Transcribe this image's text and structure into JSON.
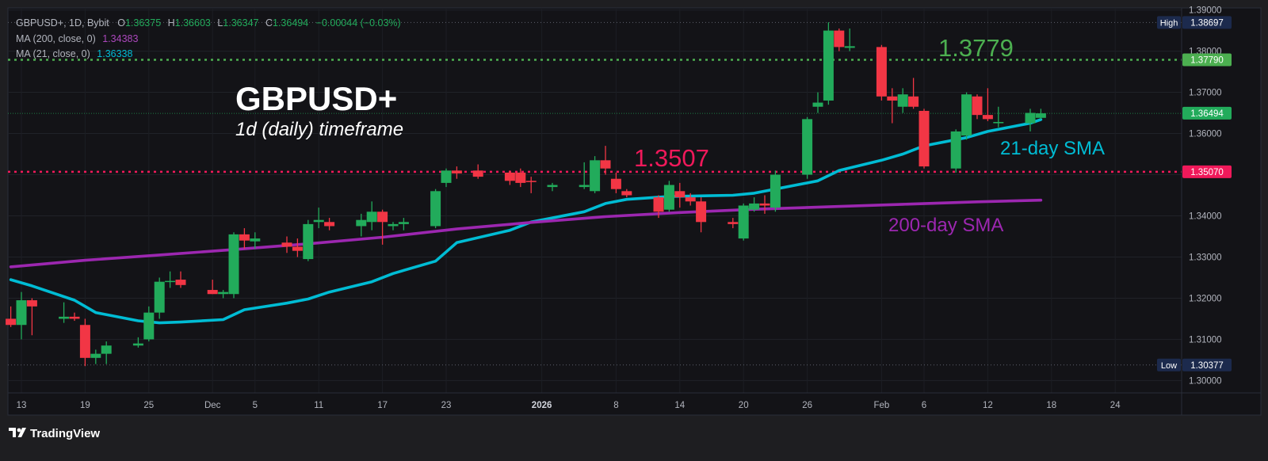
{
  "legend": {
    "symbol_line": {
      "prefix": "GBPUSD+, 1D, Bybit",
      "o_label": "O",
      "o_value": "1.36375",
      "h_label": "H",
      "h_value": "1.36603",
      "l_label": "L",
      "l_value": "1.36347",
      "c_label": "C",
      "c_value": "1.36494",
      "change": "−0.00044 (−0.03%)"
    },
    "ma200": {
      "label": "MA (200, close, 0)",
      "value": "1.34383"
    },
    "ma21": {
      "label": "MA (21, close, 0)",
      "value": "1.36338"
    }
  },
  "annotations": {
    "title": "GBPUSD+",
    "subtitle": "1d (daily) timeframe",
    "resistance_label": "1.3779",
    "support_label": "1.3507",
    "ma21_label": "21-day SMA",
    "ma200_label": "200-day SMA"
  },
  "price_tags": {
    "high": {
      "label": "High",
      "value": "1.38697"
    },
    "low": {
      "label": "Low",
      "value": "1.30377"
    },
    "last": "1.36494",
    "resistance": "1.37790",
    "support": "1.35070"
  },
  "footer": {
    "brand": "TradingView"
  },
  "colors": {
    "background": "#131317",
    "up": "#22ab5b",
    "down": "#f23645",
    "ma21": "#00bcd4",
    "ma200": "#9c27b0",
    "resistance": "#4caf50",
    "support": "#f0195a",
    "text": "#b2b5be"
  },
  "chart_data": {
    "type": "candlestick",
    "symbol": "GBPUSD+",
    "timeframe": "1D",
    "y_axis": {
      "ticks": [
        "1.39000",
        "1.38000",
        "1.37000",
        "1.36000",
        "1.35000",
        "1.34000",
        "1.33000",
        "1.32000",
        "1.31000",
        "1.30000"
      ],
      "ylim": [
        1.297,
        1.3905
      ]
    },
    "x_axis": {
      "ticks": [
        {
          "label": "13",
          "date": "2025-11-13"
        },
        {
          "label": "19",
          "date": "2025-11-19"
        },
        {
          "label": "25",
          "date": "2025-11-25"
        },
        {
          "label": "Dec",
          "date": "2025-12-01"
        },
        {
          "label": "5",
          "date": "2025-12-05"
        },
        {
          "label": "11",
          "date": "2025-12-11"
        },
        {
          "label": "17",
          "date": "2025-12-17"
        },
        {
          "label": "23",
          "date": "2025-12-23"
        },
        {
          "label": "2026",
          "date": "2026-01-01"
        },
        {
          "label": "8",
          "date": "2026-01-08"
        },
        {
          "label": "14",
          "date": "2026-01-14"
        },
        {
          "label": "20",
          "date": "2026-01-20"
        },
        {
          "label": "26",
          "date": "2026-01-26"
        },
        {
          "label": "Feb",
          "date": "2026-02-02"
        },
        {
          "label": "6",
          "date": "2026-02-06"
        },
        {
          "label": "12",
          "date": "2026-02-12"
        },
        {
          "label": "18",
          "date": "2026-02-18"
        },
        {
          "label": "24",
          "date": "2026-02-24"
        }
      ]
    },
    "candles": [
      {
        "date": "2025-11-12",
        "open": 1.315,
        "high": 1.318,
        "low": 1.313,
        "close": 1.3135
      },
      {
        "date": "2025-11-13",
        "open": 1.3135,
        "high": 1.3215,
        "low": 1.31,
        "close": 1.3195
      },
      {
        "date": "2025-11-14",
        "open": 1.3195,
        "high": 1.32,
        "low": 1.311,
        "close": 1.318
      },
      {
        "date": "2025-11-17",
        "open": 1.315,
        "high": 1.319,
        "low": 1.314,
        "close": 1.3155
      },
      {
        "date": "2025-11-18",
        "open": 1.3155,
        "high": 1.3165,
        "low": 1.3145,
        "close": 1.315
      },
      {
        "date": "2025-11-19",
        "open": 1.3135,
        "high": 1.315,
        "low": 1.3035,
        "close": 1.3055
      },
      {
        "date": "2025-11-20",
        "open": 1.3055,
        "high": 1.3075,
        "low": 1.304,
        "close": 1.3065
      },
      {
        "date": "2025-11-21",
        "open": 1.3065,
        "high": 1.3095,
        "low": 1.304,
        "close": 1.3085
      },
      {
        "date": "2025-11-24",
        "open": 1.3085,
        "high": 1.3105,
        "low": 1.308,
        "close": 1.309
      },
      {
        "date": "2025-11-25",
        "open": 1.31,
        "high": 1.318,
        "low": 1.3095,
        "close": 1.3165
      },
      {
        "date": "2025-11-26",
        "open": 1.3165,
        "high": 1.325,
        "low": 1.315,
        "close": 1.324
      },
      {
        "date": "2025-11-27",
        "open": 1.324,
        "high": 1.3265,
        "low": 1.3225,
        "close": 1.3242
      },
      {
        "date": "2025-11-28",
        "open": 1.3245,
        "high": 1.3265,
        "low": 1.3225,
        "close": 1.3232
      },
      {
        "date": "2025-12-01",
        "open": 1.322,
        "high": 1.3245,
        "low": 1.321,
        "close": 1.321
      },
      {
        "date": "2025-12-02",
        "open": 1.321,
        "high": 1.322,
        "low": 1.32,
        "close": 1.3215
      },
      {
        "date": "2025-12-03",
        "open": 1.321,
        "high": 1.336,
        "low": 1.32,
        "close": 1.3355
      },
      {
        "date": "2025-12-04",
        "open": 1.3355,
        "high": 1.337,
        "low": 1.332,
        "close": 1.334
      },
      {
        "date": "2025-12-05",
        "open": 1.3338,
        "high": 1.336,
        "low": 1.332,
        "close": 1.3345
      },
      {
        "date": "2025-12-08",
        "open": 1.3335,
        "high": 1.335,
        "low": 1.331,
        "close": 1.3325
      },
      {
        "date": "2025-12-09",
        "open": 1.3325,
        "high": 1.3345,
        "low": 1.33,
        "close": 1.3315
      },
      {
        "date": "2025-12-10",
        "open": 1.3295,
        "high": 1.339,
        "low": 1.329,
        "close": 1.338
      },
      {
        "date": "2025-12-11",
        "open": 1.3385,
        "high": 1.342,
        "low": 1.337,
        "close": 1.339
      },
      {
        "date": "2025-12-12",
        "open": 1.3385,
        "high": 1.3395,
        "low": 1.3365,
        "close": 1.3375
      },
      {
        "date": "2025-12-15",
        "open": 1.3375,
        "high": 1.3405,
        "low": 1.335,
        "close": 1.339
      },
      {
        "date": "2025-12-16",
        "open": 1.3385,
        "high": 1.3435,
        "low": 1.3365,
        "close": 1.341
      },
      {
        "date": "2025-12-17",
        "open": 1.341,
        "high": 1.3415,
        "low": 1.333,
        "close": 1.3385
      },
      {
        "date": "2025-12-18",
        "open": 1.3375,
        "high": 1.3385,
        "low": 1.3365,
        "close": 1.338
      },
      {
        "date": "2025-12-19",
        "open": 1.338,
        "high": 1.3395,
        "low": 1.3365,
        "close": 1.3385
      },
      {
        "date": "2025-12-22",
        "open": 1.3375,
        "high": 1.3465,
        "low": 1.337,
        "close": 1.346
      },
      {
        "date": "2025-12-23",
        "open": 1.348,
        "high": 1.3515,
        "low": 1.347,
        "close": 1.351
      },
      {
        "date": "2025-12-24",
        "open": 1.351,
        "high": 1.352,
        "low": 1.349,
        "close": 1.3503
      },
      {
        "date": "2025-12-26",
        "open": 1.351,
        "high": 1.3525,
        "low": 1.349,
        "close": 1.3495
      },
      {
        "date": "2025-12-29",
        "open": 1.3505,
        "high": 1.351,
        "low": 1.3475,
        "close": 1.3485
      },
      {
        "date": "2025-12-30",
        "open": 1.3505,
        "high": 1.3515,
        "low": 1.347,
        "close": 1.348
      },
      {
        "date": "2025-12-31",
        "open": 1.3485,
        "high": 1.3495,
        "low": 1.3455,
        "close": 1.3482
      },
      {
        "date": "2026-01-02",
        "open": 1.347,
        "high": 1.348,
        "low": 1.346,
        "close": 1.3475
      },
      {
        "date": "2026-01-05",
        "open": 1.347,
        "high": 1.353,
        "low": 1.3465,
        "close": 1.3475
      },
      {
        "date": "2026-01-06",
        "open": 1.346,
        "high": 1.3545,
        "low": 1.3455,
        "close": 1.3535
      },
      {
        "date": "2026-01-07",
        "open": 1.3535,
        "high": 1.357,
        "low": 1.35,
        "close": 1.3515
      },
      {
        "date": "2026-01-08",
        "open": 1.349,
        "high": 1.3505,
        "low": 1.3455,
        "close": 1.3465
      },
      {
        "date": "2026-01-09",
        "open": 1.346,
        "high": 1.3465,
        "low": 1.3445,
        "close": 1.345
      },
      {
        "date": "2026-01-12",
        "open": 1.3445,
        "high": 1.345,
        "low": 1.3395,
        "close": 1.341
      },
      {
        "date": "2026-01-13",
        "open": 1.3415,
        "high": 1.3485,
        "low": 1.341,
        "close": 1.3475
      },
      {
        "date": "2026-01-14",
        "open": 1.346,
        "high": 1.348,
        "low": 1.342,
        "close": 1.3445
      },
      {
        "date": "2026-01-15",
        "open": 1.3445,
        "high": 1.3455,
        "low": 1.3425,
        "close": 1.3435
      },
      {
        "date": "2026-01-16",
        "open": 1.3435,
        "high": 1.3445,
        "low": 1.336,
        "close": 1.3385
      },
      {
        "date": "2026-01-19",
        "open": 1.3385,
        "high": 1.3395,
        "low": 1.337,
        "close": 1.338
      },
      {
        "date": "2026-01-20",
        "open": 1.3345,
        "high": 1.343,
        "low": 1.334,
        "close": 1.3425
      },
      {
        "date": "2026-01-21",
        "open": 1.3415,
        "high": 1.3445,
        "low": 1.341,
        "close": 1.343
      },
      {
        "date": "2026-01-22",
        "open": 1.343,
        "high": 1.345,
        "low": 1.3405,
        "close": 1.3425
      },
      {
        "date": "2026-01-23",
        "open": 1.342,
        "high": 1.351,
        "low": 1.341,
        "close": 1.35
      },
      {
        "date": "2026-01-26",
        "open": 1.35,
        "high": 1.364,
        "low": 1.349,
        "close": 1.3635
      },
      {
        "date": "2026-01-27",
        "open": 1.3665,
        "high": 1.37,
        "low": 1.365,
        "close": 1.3675
      },
      {
        "date": "2026-01-28",
        "open": 1.368,
        "high": 1.387,
        "low": 1.367,
        "close": 1.385
      },
      {
        "date": "2026-01-29",
        "open": 1.385,
        "high": 1.3855,
        "low": 1.38,
        "close": 1.381
      },
      {
        "date": "2026-01-30",
        "open": 1.3808,
        "high": 1.3855,
        "low": 1.38,
        "close": 1.3812
      },
      {
        "date": "2026-02-02",
        "open": 1.381,
        "high": 1.3815,
        "low": 1.368,
        "close": 1.369
      },
      {
        "date": "2026-02-03",
        "open": 1.369,
        "high": 1.371,
        "low": 1.3625,
        "close": 1.368
      },
      {
        "date": "2026-02-04",
        "open": 1.3665,
        "high": 1.371,
        "low": 1.365,
        "close": 1.3695
      },
      {
        "date": "2026-02-05",
        "open": 1.369,
        "high": 1.3735,
        "low": 1.366,
        "close": 1.3665
      },
      {
        "date": "2026-02-06",
        "open": 1.3655,
        "high": 1.366,
        "low": 1.3515,
        "close": 1.352
      },
      {
        "date": "2026-02-09",
        "open": 1.3515,
        "high": 1.361,
        "low": 1.3505,
        "close": 1.3605
      },
      {
        "date": "2026-02-10",
        "open": 1.3595,
        "high": 1.37,
        "low": 1.3585,
        "close": 1.3695
      },
      {
        "date": "2026-02-11",
        "open": 1.369,
        "high": 1.3695,
        "low": 1.3635,
        "close": 1.3645
      },
      {
        "date": "2026-02-12",
        "open": 1.3645,
        "high": 1.371,
        "low": 1.363,
        "close": 1.3635
      },
      {
        "date": "2026-02-13",
        "open": 1.3625,
        "high": 1.3665,
        "low": 1.3615,
        "close": 1.3628
      },
      {
        "date": "2026-02-16",
        "open": 1.3625,
        "high": 1.366,
        "low": 1.3605,
        "close": 1.365
      },
      {
        "date": "2026-02-17",
        "open": 1.3638,
        "high": 1.366,
        "low": 1.3635,
        "close": 1.3649
      }
    ],
    "series": [
      {
        "name": "MA (21, close, 0)",
        "points": [
          [
            "2025-11-12",
            1.3245
          ],
          [
            "2025-11-14",
            1.323
          ],
          [
            "2025-11-18",
            1.3195
          ],
          [
            "2025-11-20",
            1.3165
          ],
          [
            "2025-11-24",
            1.3145
          ],
          [
            "2025-11-26",
            1.314
          ],
          [
            "2025-11-28",
            1.3142
          ],
          [
            "2025-12-02",
            1.3148
          ],
          [
            "2025-12-04",
            1.3172
          ],
          [
            "2025-12-08",
            1.3188
          ],
          [
            "2025-12-10",
            1.3198
          ],
          [
            "2025-12-12",
            1.3215
          ],
          [
            "2025-12-16",
            1.324
          ],
          [
            "2025-12-18",
            1.326
          ],
          [
            "2025-12-22",
            1.329
          ],
          [
            "2025-12-24",
            1.3335
          ],
          [
            "2025-12-29",
            1.3365
          ],
          [
            "2025-12-31",
            1.3385
          ],
          [
            "2026-01-05",
            1.341
          ],
          [
            "2026-01-07",
            1.343
          ],
          [
            "2026-01-09",
            1.344
          ],
          [
            "2026-01-13",
            1.3447
          ],
          [
            "2026-01-15",
            1.3448
          ],
          [
            "2026-01-19",
            1.345
          ],
          [
            "2026-01-21",
            1.3455
          ],
          [
            "2026-01-23",
            1.3465
          ],
          [
            "2026-01-27",
            1.3485
          ],
          [
            "2026-01-29",
            1.351
          ],
          [
            "2026-02-02",
            1.3535
          ],
          [
            "2026-02-04",
            1.355
          ],
          [
            "2026-02-06",
            1.357
          ],
          [
            "2026-02-10",
            1.359
          ],
          [
            "2026-02-12",
            1.3605
          ],
          [
            "2026-02-16",
            1.3625
          ],
          [
            "2026-02-17",
            1.3634
          ]
        ]
      },
      {
        "name": "MA (200, close, 0)",
        "points": [
          [
            "2025-11-12",
            1.3276
          ],
          [
            "2025-11-19",
            1.3292
          ],
          [
            "2025-11-26",
            1.3305
          ],
          [
            "2025-12-03",
            1.3318
          ],
          [
            "2025-12-10",
            1.3332
          ],
          [
            "2025-12-17",
            1.3348
          ],
          [
            "2025-12-24",
            1.3368
          ],
          [
            "2025-12-31",
            1.3384
          ],
          [
            "2026-01-07",
            1.3398
          ],
          [
            "2026-01-14",
            1.3408
          ],
          [
            "2026-01-21",
            1.3416
          ],
          [
            "2026-01-28",
            1.3422
          ],
          [
            "2026-02-04",
            1.3428
          ],
          [
            "2026-02-11",
            1.3434
          ],
          [
            "2026-02-17",
            1.3438
          ]
        ]
      }
    ],
    "levels": [
      {
        "name": "resistance",
        "value": 1.3779
      },
      {
        "name": "support",
        "value": 1.3507
      },
      {
        "name": "high",
        "value": 1.38697
      },
      {
        "name": "low",
        "value": 1.30377
      }
    ]
  }
}
